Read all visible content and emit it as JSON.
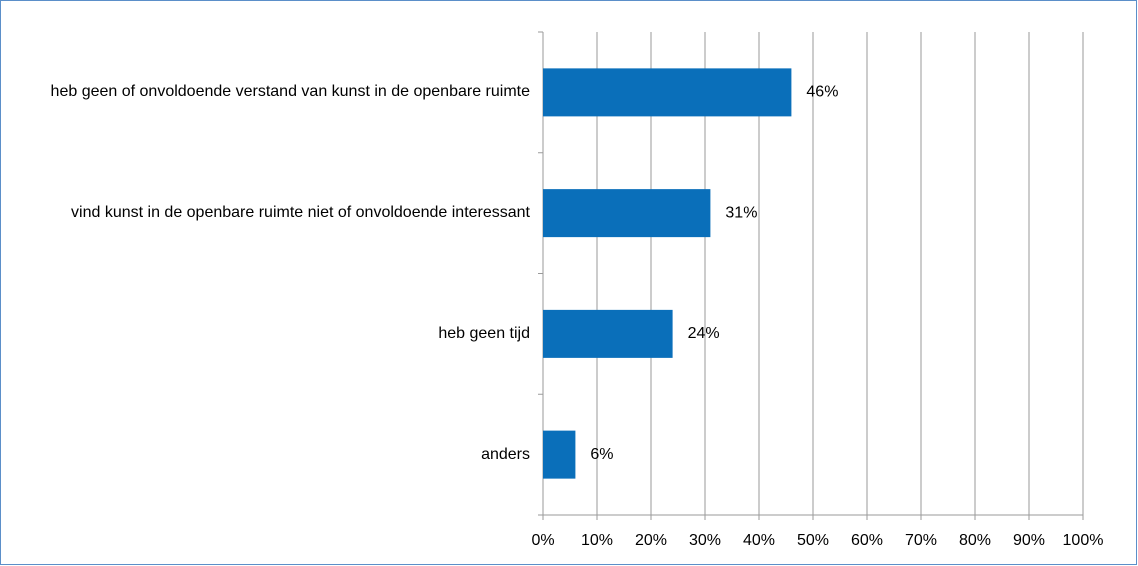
{
  "chart_data": {
    "type": "bar",
    "orientation": "horizontal",
    "categories": [
      "heb geen of onvoldoende verstand van kunst in de openbare ruimte",
      "vind kunst in de openbare ruimte niet of onvoldoende interessant",
      "heb geen tijd",
      "anders"
    ],
    "values": [
      46,
      31,
      24,
      6
    ],
    "value_labels": [
      "46%",
      "31%",
      "24%",
      "6%"
    ],
    "color": "#0a6fba",
    "xlim": [
      0,
      100
    ],
    "xticks": [
      {
        "value": 0,
        "label": "0%"
      },
      {
        "value": 10,
        "label": "10%"
      },
      {
        "value": 20,
        "label": "20%"
      },
      {
        "value": 30,
        "label": "30%"
      },
      {
        "value": 40,
        "label": "40%"
      },
      {
        "value": 50,
        "label": "50%"
      },
      {
        "value": 60,
        "label": "60%"
      },
      {
        "value": 70,
        "label": "70%"
      },
      {
        "value": 80,
        "label": "80%"
      },
      {
        "value": 90,
        "label": "90%"
      },
      {
        "value": 100,
        "label": "100%"
      }
    ],
    "grid": true
  }
}
